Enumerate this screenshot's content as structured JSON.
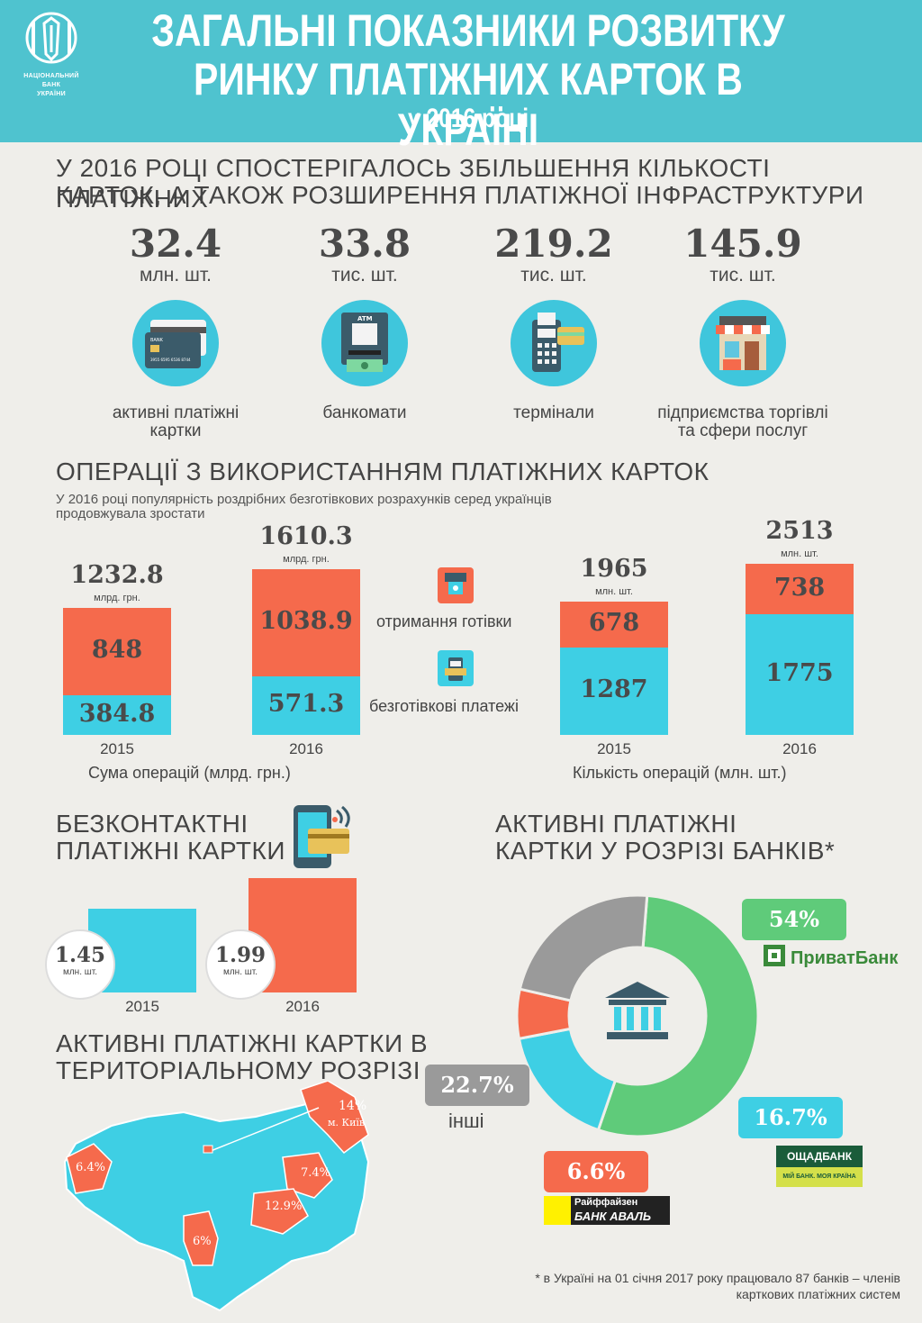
{
  "header": {
    "logo_text_1": "НАЦІОНАЛЬНИЙ",
    "logo_text_2": "БАНК",
    "logo_text_3": "УКРАЇНИ",
    "title_line1": "ЗАГАЛЬНІ ПОКАЗНИКИ РОЗВИТКУ",
    "title_line2": "РИНКУ ПЛАТІЖНИХ КАРТОК В УКРАЇНІ",
    "title_line3": "у 2016 році"
  },
  "intro": {
    "title_line1": "У 2016 РОЦІ СПОСТЕРІГАЛОСЬ ЗБІЛЬШЕННЯ КІЛЬКОСТІ ПЛАТІЖНИХ",
    "title_line2": "КАРТОК, А ТАКОЖ РОЗШИРЕННЯ ПЛАТІЖНОЇ ІНФРАСТРУКТУРИ",
    "stats": [
      {
        "value": "32.4",
        "unit": "млн. шт.",
        "caption1": "активні платіжні",
        "caption2": "картки",
        "icon": "credit-cards-icon"
      },
      {
        "value": "33.8",
        "unit": "тис. шт.",
        "caption1": "банкомати",
        "caption2": "",
        "icon": "atm-icon"
      },
      {
        "value": "219.2",
        "unit": "тис. шт.",
        "caption1": "термінали",
        "caption2": "",
        "icon": "pos-terminal-icon"
      },
      {
        "value": "145.9",
        "unit": "тис. шт.",
        "caption1": "підприємства торгівлі",
        "caption2": "та сфери послуг",
        "icon": "shop-icon"
      }
    ],
    "atm_label": "ATM",
    "card_label": "BANK",
    "card_number": "3955 6595 6536 8744"
  },
  "operations": {
    "title": "ОПЕРАЦІЇ З ВИКОРИСТАННЯМ ПЛАТІЖНИХ КАРТОК",
    "subtitle_line1": "У 2016 році популярність роздрібних безготівкових розрахунків серед українців",
    "subtitle_line2": "продовжувала зростати",
    "legend_cash": "отримання готівки",
    "legend_cashless": "безготівкові платежі",
    "sum_axis": "Сума операцій (млрд. грн.)",
    "count_axis": "Кількість операцій (млн. шт.)"
  },
  "chart_data": [
    {
      "type": "bar",
      "stacked": true,
      "categories": [
        "2015",
        "2016"
      ],
      "totals": [
        "1232.8",
        "1610.3"
      ],
      "total_unit": "млрд. грн.",
      "series": [
        {
          "name": "безготівкові платежі",
          "values": [
            384.8,
            571.3
          ],
          "labels": [
            "384.8",
            "571.3"
          ],
          "color": "#3ecfe4"
        },
        {
          "name": "отримання готівки",
          "values": [
            848,
            1038.9
          ],
          "labels": [
            "848",
            "1038.9"
          ],
          "color": "#f56a4c"
        }
      ],
      "xlabel": "Сума операцій (млрд. грн.)"
    },
    {
      "type": "bar",
      "stacked": true,
      "categories": [
        "2015",
        "2016"
      ],
      "totals": [
        "1965",
        "2513"
      ],
      "total_unit": "млн. шт.",
      "series": [
        {
          "name": "безготівкові платежі",
          "values": [
            1287,
            1775
          ],
          "labels": [
            "1287",
            "1775"
          ],
          "color": "#3ecfe4"
        },
        {
          "name": "отримання готівки",
          "values": [
            678,
            738
          ],
          "labels": [
            "678",
            "738"
          ],
          "color": "#f56a4c"
        }
      ],
      "xlabel": "Кількість операцій (млн. шт.)"
    },
    {
      "type": "bar",
      "categories": [
        "2015",
        "2016"
      ],
      "values": [
        1.45,
        1.99
      ],
      "labels": [
        "1.45",
        "1.99"
      ],
      "unit": "млн. шт.",
      "title": "БЕЗКОНТАКТНІ ПЛАТІЖНІ КАРТКИ"
    },
    {
      "type": "pie",
      "donut": true,
      "title": "АКТИВНІ ПЛАТІЖНІ КАРТКИ У РОЗРІЗІ БАНКІВ*",
      "slices": [
        {
          "name": "ПриватБанк",
          "value": 54,
          "label": "54%",
          "color": "#5fcb7a"
        },
        {
          "name": "ОЩАДБАНК",
          "value": 16.7,
          "label": "16.7%",
          "color": "#3ecfe4"
        },
        {
          "name": "Райффайзен БАНК АВАЛЬ",
          "value": 6.6,
          "label": "6.6%",
          "color": "#f56a4c"
        },
        {
          "name": "інші",
          "value": 22.7,
          "label": "22.7%",
          "color": "#9a9a9a"
        }
      ]
    }
  ],
  "contactless": {
    "title_line1": "БЕЗКОНТАКТНІ",
    "title_line2": "ПЛАТІЖНІ КАРТКИ",
    "unit": "млн. шт."
  },
  "banks": {
    "title_line1": "АКТИВНІ ПЛАТІЖНІ",
    "title_line2": "КАРТКИ У РОЗРІЗІ БАНКІВ*",
    "others_label": "інші",
    "privat_logo": "ПриватБанк",
    "oschad_logo": "ОЩАДБАНК",
    "oschad_slogan": "МІЙ БАНК. МОЯ КРАЇНА",
    "aval_logo_1": "Райффайзен",
    "aval_logo_2": "БАНК АВАЛЬ"
  },
  "regions": {
    "title_line1": "АКТИВНІ ПЛАТІЖНІ КАРТКИ В",
    "title_line2": "ТЕРИТОРІАЛЬНОМУ РОЗРІЗІ",
    "labels": [
      {
        "id": "kyiv",
        "value": "14%",
        "name": "м. Київ"
      },
      {
        "id": "lviv",
        "value": "6.4%"
      },
      {
        "id": "kharkiv",
        "value": "7.4%"
      },
      {
        "id": "dnipro",
        "value": "12.9%"
      },
      {
        "id": "odesa",
        "value": "6%"
      }
    ]
  },
  "footnote": {
    "line1": "* в Україні на 01 січня 2017 року працювало 87 банків – членів",
    "line2": "карткових платіжних систем"
  },
  "colors": {
    "header": "#4fc3cf",
    "background": "#efeeea",
    "orange": "#f56a4c",
    "blue": "#3ecfe4",
    "green": "#5fcb7a",
    "gray": "#9a9a9a"
  }
}
